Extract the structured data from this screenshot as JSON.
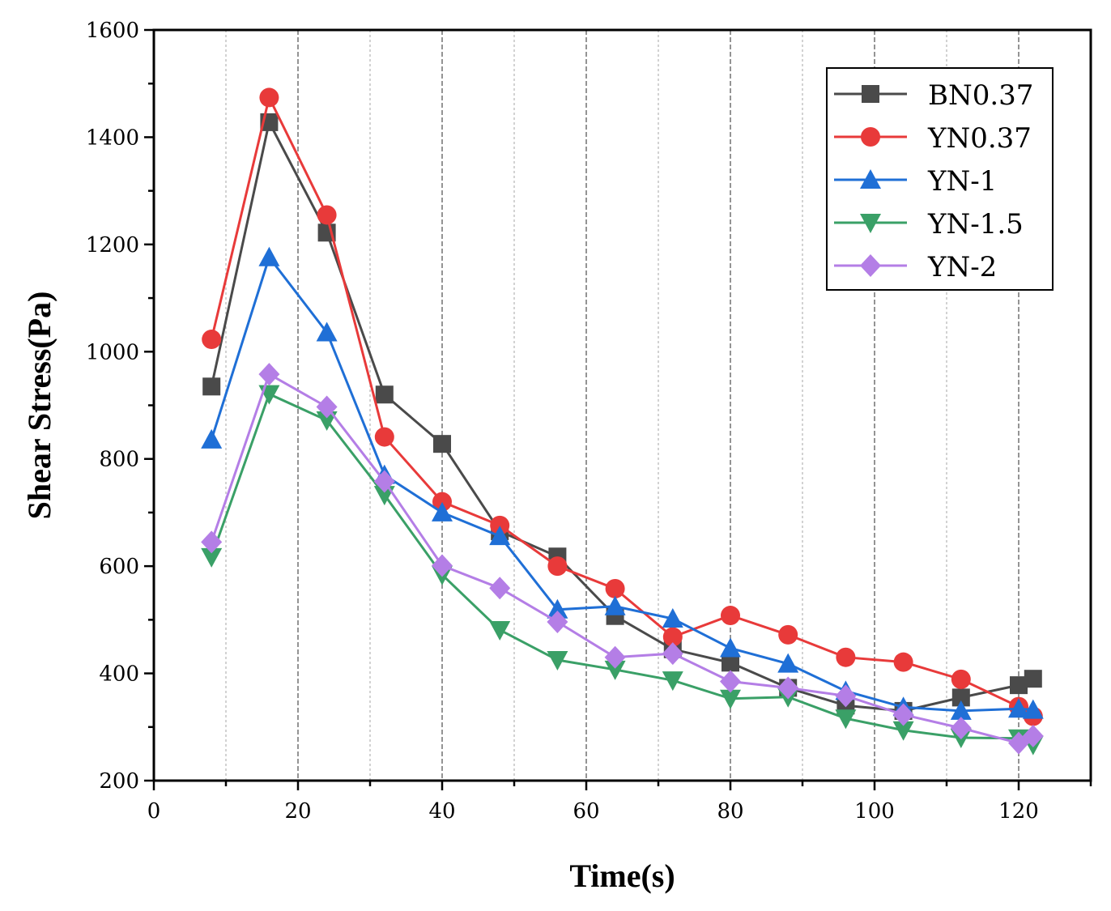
{
  "chart_data": {
    "type": "line",
    "title": "",
    "xlabel": "Time(s)",
    "ylabel": "Shear Stress(Pa)",
    "xlim": [
      0,
      130
    ],
    "ylim": [
      200,
      1600
    ],
    "xticks": [
      0,
      20,
      40,
      60,
      80,
      100,
      120
    ],
    "yticks": [
      200,
      400,
      600,
      800,
      1000,
      1200,
      1400,
      1600
    ],
    "x_tick_labels": [
      "0",
      "20",
      "40",
      "60",
      "80",
      "100",
      "120"
    ],
    "y_tick_labels": [
      "200",
      "400",
      "600",
      "800",
      "1000",
      "1200",
      "1400",
      "1600"
    ],
    "grid": "vertical dashed",
    "legend_position": "top-right",
    "x": [
      8,
      16,
      24,
      32,
      40,
      48,
      56,
      64,
      72,
      80,
      88,
      96,
      104,
      112,
      120,
      122
    ],
    "series": [
      {
        "name": "BN0.37",
        "color": "#4a4a4a",
        "marker": "square",
        "values": [
          935,
          1428,
          1222,
          920,
          828,
          665,
          618,
          507,
          445,
          420,
          373,
          340,
          330,
          355,
          378,
          390
        ]
      },
      {
        "name": "YN0.37",
        "color": "#e83a3a",
        "marker": "circle",
        "values": [
          1023,
          1474,
          1255,
          841,
          720,
          676,
          600,
          558,
          468,
          508,
          472,
          430,
          421,
          389,
          338,
          320
        ]
      },
      {
        "name": "YN-1",
        "color": "#1f6fd6",
        "marker": "triangle-up",
        "values": [
          836,
          1176,
          1036,
          770,
          700,
          656,
          519,
          525,
          502,
          447,
          418,
          367,
          337,
          330,
          334,
          332
        ]
      },
      {
        "name": "YN-1.5",
        "color": "#3aa067",
        "marker": "triangle-down",
        "values": [
          617,
          921,
          872,
          733,
          584,
          481,
          425,
          407,
          387,
          353,
          356,
          316,
          294,
          280,
          279,
          267
        ]
      },
      {
        "name": "YN-2",
        "color": "#b47ee6",
        "marker": "diamond",
        "values": [
          645,
          958,
          897,
          758,
          601,
          559,
          496,
          430,
          437,
          385,
          373,
          358,
          323,
          298,
          270,
          283
        ]
      }
    ]
  }
}
